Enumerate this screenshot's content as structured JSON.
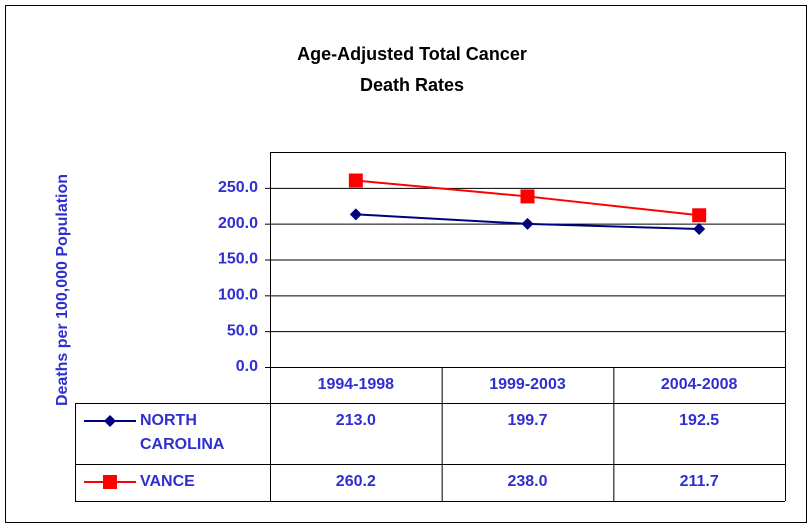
{
  "chart_data": {
    "type": "line",
    "title": "Age-Adjusted Total Cancer",
    "subtitle": "Death Rates",
    "y_label": "Deaths per 100,000 Population",
    "categories": [
      "1994-1998",
      "1999-2003",
      "2004-2008"
    ],
    "series": [
      {
        "name": "NORTH CAROLINA",
        "color": "#000080",
        "marker": "diamond",
        "values": [
          213.0,
          199.7,
          192.5
        ],
        "value_labels": [
          "213.0",
          "199.7",
          "192.5"
        ]
      },
      {
        "name": "VANCE",
        "color": "#ff0000",
        "marker": "square",
        "values": [
          260.2,
          238.0,
          211.7
        ],
        "value_labels": [
          "260.2",
          "238.0",
          "211.7"
        ]
      }
    ],
    "ylim": [
      0,
      300
    ],
    "yticks": [
      {
        "value": 0,
        "label": "0.0"
      },
      {
        "value": 50,
        "label": "50.0"
      },
      {
        "value": 100,
        "label": "100.0"
      },
      {
        "value": 150,
        "label": "150.0"
      },
      {
        "value": 200,
        "label": "200.0"
      },
      {
        "value": 250,
        "label": "250.0"
      }
    ],
    "grid": true
  }
}
